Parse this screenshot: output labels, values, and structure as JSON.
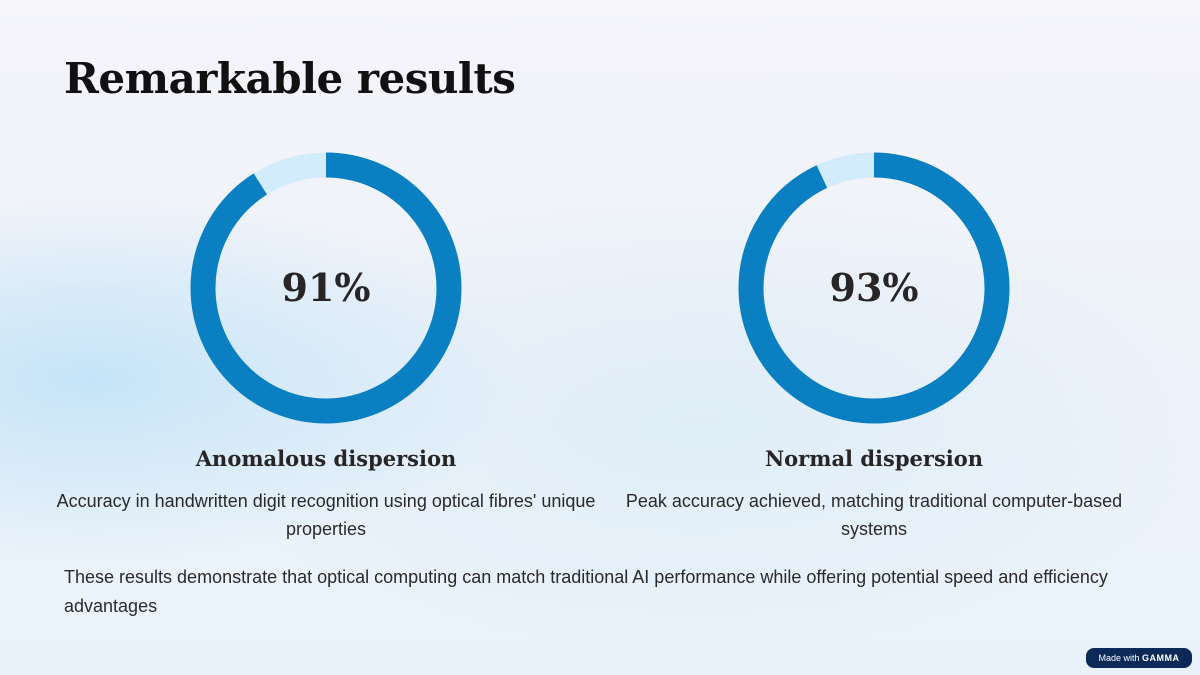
{
  "title": "Remarkable results",
  "stats": [
    {
      "value_label": "91%",
      "percent": 91,
      "heading": "Anomalous dispersion",
      "description": "Accuracy in handwritten digit recognition using optical fibres' unique properties"
    },
    {
      "value_label": "93%",
      "percent": 93,
      "heading": "Normal dispersion",
      "description": "Peak accuracy achieved, matching traditional computer-based systems"
    }
  ],
  "summary": "These results demonstrate that optical computing can match traditional AI performance while offering potential speed and efficiency advantages",
  "badge": {
    "prefix": "Made with",
    "brand": "GAMMA"
  },
  "colors": {
    "ring_fill": "#0a7fc2",
    "ring_track": "#d3ecfb"
  }
}
